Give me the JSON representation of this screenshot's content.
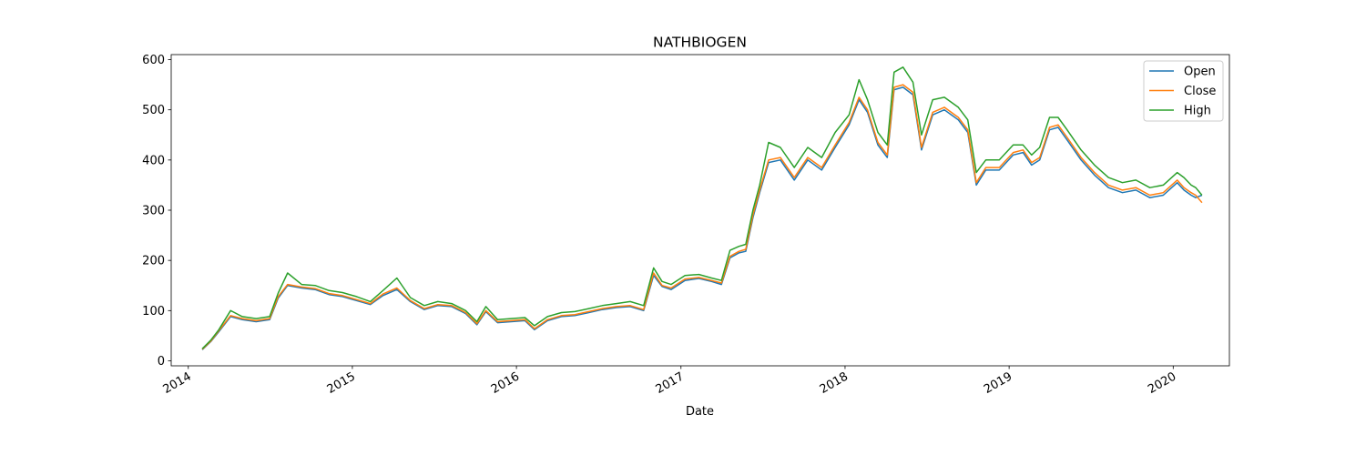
{
  "chart_data": {
    "type": "line",
    "title": "NATHBIOGEN",
    "xlabel": "Date",
    "ylabel": "",
    "xlim": [
      "2013-11-24",
      "2020-05-05"
    ],
    "ylim": [
      -10,
      610
    ],
    "x_ticks": [
      "2014",
      "2015",
      "2016",
      "2017",
      "2018",
      "2019",
      "2020"
    ],
    "y_ticks": [
      0,
      100,
      200,
      300,
      400,
      500,
      600
    ],
    "grid": false,
    "legend_position": "top-right",
    "series": [
      {
        "name": "Open",
        "color": "#1f77b4",
        "x": [
          "2014-02-01",
          "2014-02-20",
          "2014-03-10",
          "2014-04-05",
          "2014-05-01",
          "2014-06-01",
          "2014-07-01",
          "2014-07-20",
          "2014-08-10",
          "2014-09-10",
          "2014-10-10",
          "2014-11-10",
          "2014-12-10",
          "2015-01-10",
          "2015-02-10",
          "2015-03-10",
          "2015-04-10",
          "2015-05-10",
          "2015-06-10",
          "2015-07-10",
          "2015-08-10",
          "2015-09-10",
          "2015-10-05",
          "2015-10-25",
          "2015-11-20",
          "2015-12-20",
          "2016-01-20",
          "2016-02-10",
          "2016-03-10",
          "2016-04-10",
          "2016-05-10",
          "2016-06-10",
          "2016-07-10",
          "2016-08-10",
          "2016-09-10",
          "2016-10-10",
          "2016-11-01",
          "2016-11-20",
          "2016-12-10",
          "2017-01-10",
          "2017-02-10",
          "2017-03-10",
          "2017-04-01",
          "2017-04-20",
          "2017-05-10",
          "2017-05-25",
          "2017-06-10",
          "2017-06-25",
          "2017-07-15",
          "2017-08-10",
          "2017-09-10",
          "2017-10-10",
          "2017-11-10",
          "2017-12-10",
          "2018-01-10",
          "2018-02-01",
          "2018-02-20",
          "2018-03-15",
          "2018-04-05",
          "2018-04-20",
          "2018-05-10",
          "2018-06-01",
          "2018-06-20",
          "2018-07-15",
          "2018-08-10",
          "2018-09-10",
          "2018-10-01",
          "2018-10-20",
          "2018-11-10",
          "2018-12-10",
          "2019-01-10",
          "2019-02-01",
          "2019-02-20",
          "2019-03-10",
          "2019-04-01",
          "2019-04-20",
          "2019-05-10",
          "2019-06-10",
          "2019-07-10",
          "2019-08-10",
          "2019-09-10",
          "2019-10-10",
          "2019-11-10",
          "2019-12-10",
          "2020-01-10",
          "2020-01-25",
          "2020-02-10",
          "2020-02-20",
          "2020-03-05"
        ],
        "values": [
          22,
          38,
          58,
          88,
          82,
          78,
          82,
          125,
          150,
          145,
          142,
          132,
          128,
          120,
          112,
          130,
          142,
          118,
          102,
          110,
          108,
          94,
          72,
          98,
          76,
          78,
          80,
          62,
          80,
          88,
          90,
          96,
          102,
          106,
          108,
          100,
          170,
          148,
          142,
          160,
          164,
          158,
          152,
          205,
          215,
          218,
          285,
          335,
          395,
          400,
          360,
          400,
          380,
          425,
          470,
          520,
          495,
          430,
          405,
          540,
          545,
          530,
          420,
          490,
          500,
          480,
          455,
          350,
          380,
          380,
          410,
          415,
          390,
          400,
          460,
          465,
          440,
          400,
          370,
          345,
          335,
          340,
          325,
          330,
          355,
          340,
          330,
          325,
          330
        ]
      },
      {
        "name": "Close",
        "color": "#ff7f0e",
        "x": [
          "2014-02-01",
          "2014-02-20",
          "2014-03-10",
          "2014-04-05",
          "2014-05-01",
          "2014-06-01",
          "2014-07-01",
          "2014-07-20",
          "2014-08-10",
          "2014-09-10",
          "2014-10-10",
          "2014-11-10",
          "2014-12-10",
          "2015-01-10",
          "2015-02-10",
          "2015-03-10",
          "2015-04-10",
          "2015-05-10",
          "2015-06-10",
          "2015-07-10",
          "2015-08-10",
          "2015-09-10",
          "2015-10-05",
          "2015-10-25",
          "2015-11-20",
          "2015-12-20",
          "2016-01-20",
          "2016-02-10",
          "2016-03-10",
          "2016-04-10",
          "2016-05-10",
          "2016-06-10",
          "2016-07-10",
          "2016-08-10",
          "2016-09-10",
          "2016-10-10",
          "2016-11-01",
          "2016-11-20",
          "2016-12-10",
          "2017-01-10",
          "2017-02-10",
          "2017-03-10",
          "2017-04-01",
          "2017-04-20",
          "2017-05-10",
          "2017-05-25",
          "2017-06-10",
          "2017-06-25",
          "2017-07-15",
          "2017-08-10",
          "2017-09-10",
          "2017-10-10",
          "2017-11-10",
          "2017-12-10",
          "2018-01-10",
          "2018-02-01",
          "2018-02-20",
          "2018-03-15",
          "2018-04-05",
          "2018-04-20",
          "2018-05-10",
          "2018-06-01",
          "2018-06-20",
          "2018-07-15",
          "2018-08-10",
          "2018-09-10",
          "2018-10-01",
          "2018-10-20",
          "2018-11-10",
          "2018-12-10",
          "2019-01-10",
          "2019-02-01",
          "2019-02-20",
          "2019-03-10",
          "2019-04-01",
          "2019-04-20",
          "2019-05-10",
          "2019-06-10",
          "2019-07-10",
          "2019-08-10",
          "2019-09-10",
          "2019-10-10",
          "2019-11-10",
          "2019-12-10",
          "2020-01-10",
          "2020-01-25",
          "2020-02-10",
          "2020-02-20",
          "2020-03-05"
        ],
        "values": [
          23,
          39,
          60,
          90,
          84,
          80,
          84,
          128,
          152,
          147,
          144,
          134,
          130,
          122,
          114,
          133,
          145,
          120,
          104,
          112,
          110,
          96,
          74,
          100,
          78,
          80,
          82,
          64,
          82,
          90,
          92,
          98,
          104,
          108,
          110,
          102,
          175,
          150,
          145,
          163,
          166,
          160,
          155,
          208,
          218,
          222,
          290,
          340,
          400,
          405,
          365,
          405,
          385,
          430,
          475,
          525,
          500,
          435,
          410,
          545,
          550,
          535,
          425,
          495,
          505,
          485,
          460,
          355,
          385,
          385,
          415,
          420,
          395,
          405,
          465,
          470,
          445,
          405,
          375,
          350,
          340,
          345,
          330,
          335,
          360,
          345,
          335,
          330,
          315
        ]
      },
      {
        "name": "High",
        "color": "#2ca02c",
        "x": [
          "2014-02-01",
          "2014-02-20",
          "2014-03-10",
          "2014-04-05",
          "2014-05-01",
          "2014-06-01",
          "2014-07-01",
          "2014-07-20",
          "2014-08-10",
          "2014-09-10",
          "2014-10-10",
          "2014-11-10",
          "2014-12-10",
          "2015-01-10",
          "2015-02-10",
          "2015-03-10",
          "2015-04-10",
          "2015-05-10",
          "2015-06-10",
          "2015-07-10",
          "2015-08-10",
          "2015-09-10",
          "2015-10-05",
          "2015-10-25",
          "2015-11-20",
          "2015-12-20",
          "2016-01-20",
          "2016-02-10",
          "2016-03-10",
          "2016-04-10",
          "2016-05-10",
          "2016-06-10",
          "2016-07-10",
          "2016-08-10",
          "2016-09-10",
          "2016-10-10",
          "2016-11-01",
          "2016-11-20",
          "2016-12-10",
          "2017-01-10",
          "2017-02-10",
          "2017-03-10",
          "2017-04-01",
          "2017-04-20",
          "2017-05-10",
          "2017-05-25",
          "2017-06-10",
          "2017-06-25",
          "2017-07-15",
          "2017-08-10",
          "2017-09-10",
          "2017-10-10",
          "2017-11-10",
          "2017-12-10",
          "2018-01-10",
          "2018-02-01",
          "2018-02-20",
          "2018-03-15",
          "2018-04-05",
          "2018-04-20",
          "2018-05-10",
          "2018-06-01",
          "2018-06-20",
          "2018-07-15",
          "2018-08-10",
          "2018-09-10",
          "2018-10-01",
          "2018-10-20",
          "2018-11-10",
          "2018-12-10",
          "2019-01-10",
          "2019-02-01",
          "2019-02-20",
          "2019-03-10",
          "2019-04-01",
          "2019-04-20",
          "2019-05-10",
          "2019-06-10",
          "2019-07-10",
          "2019-08-10",
          "2019-09-10",
          "2019-10-10",
          "2019-11-10",
          "2019-12-10",
          "2020-01-10",
          "2020-01-25",
          "2020-02-10",
          "2020-02-20",
          "2020-03-05"
        ],
        "values": [
          24,
          41,
          62,
          100,
          88,
          84,
          88,
          135,
          175,
          152,
          150,
          140,
          136,
          128,
          118,
          140,
          165,
          126,
          110,
          118,
          114,
          100,
          78,
          108,
          82,
          84,
          86,
          70,
          88,
          96,
          98,
          104,
          110,
          114,
          118,
          110,
          185,
          158,
          152,
          170,
          172,
          165,
          160,
          220,
          228,
          232,
          300,
          350,
          435,
          425,
          385,
          425,
          405,
          455,
          490,
          560,
          520,
          455,
          430,
          575,
          585,
          555,
          450,
          520,
          525,
          505,
          480,
          375,
          400,
          400,
          430,
          430,
          410,
          425,
          485,
          485,
          460,
          420,
          390,
          365,
          355,
          360,
          345,
          350,
          375,
          365,
          350,
          345,
          330
        ]
      }
    ]
  }
}
